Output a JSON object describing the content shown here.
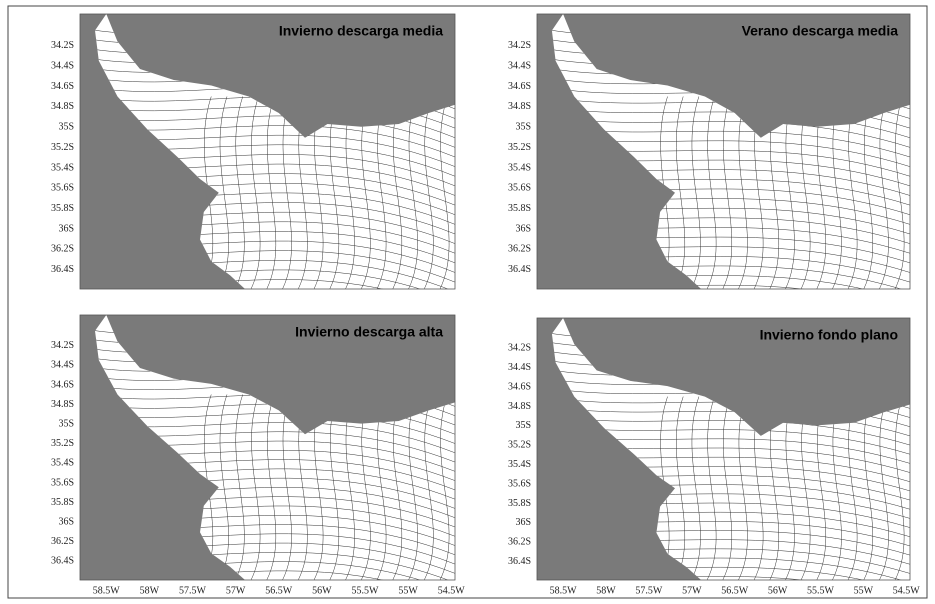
{
  "panels": [
    {
      "title": "Invierno descarga media",
      "y_labels": [
        "34.2S",
        "34.4S",
        "34.6S",
        "34.8S",
        "35S",
        "35.2S",
        "35.4S",
        "35.6S",
        "35.8S",
        "36S",
        "36.2S",
        "36.4S"
      ]
    },
    {
      "title": "Verano descarga media",
      "y_labels": [
        "34.2S",
        "34.4S",
        "34.6S",
        "34.8S",
        "35S",
        "35.2S",
        "35.4S",
        "35.6S",
        "35.8S",
        "36S",
        "36.2S",
        "36.4S"
      ]
    },
    {
      "title": "Invierno descarga alta",
      "y_labels": [
        "34.2S",
        "34.4S",
        "34.6S",
        "34.8S",
        "35S",
        "35.2S",
        "35.4S",
        "35.6S",
        "35.8S",
        "36S",
        "36.2S",
        "36.4S"
      ],
      "x_labels": [
        "58.5W",
        "58W",
        "57.5W",
        "57W",
        "56.5W",
        "56W",
        "55.5W",
        "55W",
        "54.5W"
      ]
    },
    {
      "title": "Invierno fondo plano",
      "y_labels": [
        "34.2S",
        "34.4S",
        "34.6S",
        "34.8S",
        "35S",
        "35.2S",
        "35.4S",
        "35.6S",
        "35.8S",
        "36S",
        "36.2S",
        "36.4S"
      ],
      "x_labels": [
        "58.5W",
        "58W",
        "57.5W",
        "57W",
        "56.5W",
        "56W",
        "55.5W",
        "55W",
        "54.5W"
      ]
    }
  ]
}
